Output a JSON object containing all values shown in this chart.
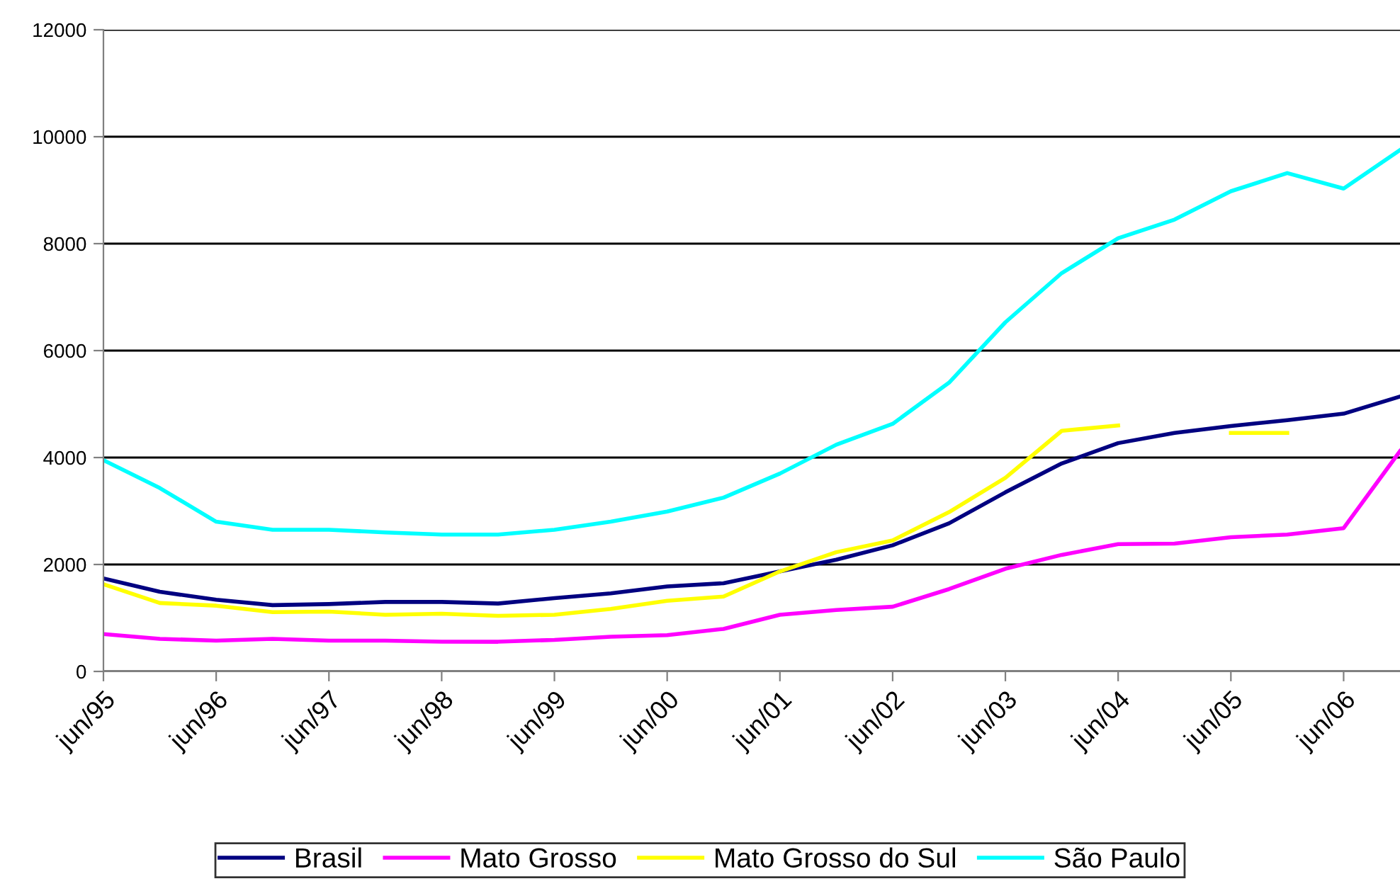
{
  "chart_data": {
    "type": "line",
    "categories": [
      "jun/95",
      null,
      "jun/96",
      null,
      "jun/97",
      null,
      "jun/98",
      null,
      "jun/99",
      null,
      "jun/00",
      null,
      "jun/01",
      null,
      "jun/02",
      null,
      "jun/03",
      null,
      "jun/04",
      null,
      "jun/05",
      null,
      "jun/06",
      null
    ],
    "series": [
      {
        "name": "Brasil",
        "color": "#000080",
        "values": [
          1740,
          1490,
          1340,
          1240,
          1260,
          1300,
          1300,
          1270,
          1370,
          1460,
          1590,
          1650,
          1870,
          2090,
          2360,
          2770,
          3350,
          3890,
          4270,
          4460,
          4590,
          4700,
          4820,
          5140
        ]
      },
      {
        "name": "Mato Grosso",
        "color": "#ff00ff",
        "values": [
          700,
          610,
          575,
          610,
          575,
          575,
          555,
          555,
          590,
          650,
          680,
          795,
          1060,
          1150,
          1210,
          1540,
          1920,
          2180,
          2380,
          2390,
          2510,
          2560,
          2680,
          4120
        ]
      },
      {
        "name": "Mato Grosso do Sul",
        "color": "#ffff00",
        "values": [
          1630,
          1280,
          1230,
          1110,
          1120,
          1060,
          1080,
          1040,
          1060,
          1170,
          1320,
          1400,
          1870,
          2230,
          2450,
          2980,
          3620,
          4500,
          4600,
          null,
          4460,
          4460,
          null,
          null
        ]
      },
      {
        "name": "São Paulo",
        "color": "#00ffff",
        "values": [
          3950,
          3430,
          2800,
          2650,
          2650,
          2600,
          2560,
          2560,
          2650,
          2800,
          2990,
          3250,
          3700,
          4240,
          4630,
          5400,
          6530,
          7450,
          8100,
          8450,
          8980,
          9320,
          9030,
          9750
        ]
      }
    ],
    "ylim": [
      0,
      12000
    ],
    "yticks": [
      0,
      2000,
      4000,
      6000,
      8000,
      10000,
      12000
    ],
    "grid": "y",
    "legend": "bottom",
    "marker": "none",
    "line_style": "solid"
  }
}
